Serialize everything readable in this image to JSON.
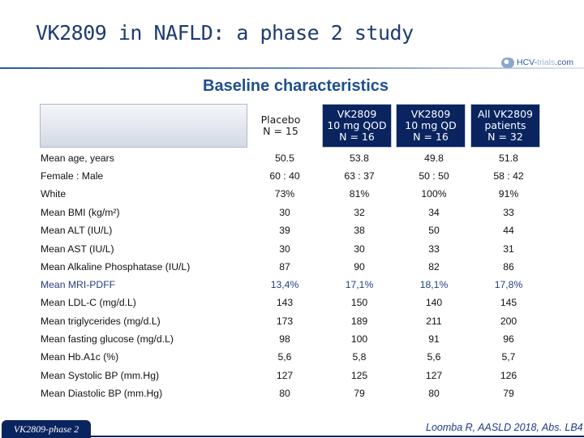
{
  "title": "VK2809 in NAFLD: a phase 2 study",
  "logo": {
    "brand": "HCV-",
    "brand_suffix": "trials",
    "domain": ".com"
  },
  "subtitle": "Baseline characteristics",
  "columns": [
    {
      "label": "Placebo\nN = 15"
    },
    {
      "label": "VK2809\n10 mg QOD\nN = 16"
    },
    {
      "label": "VK2809\n10 mg QD\nN = 16"
    },
    {
      "label": "All VK2809\npatients\nN = 32"
    }
  ],
  "rows": [
    {
      "label": "Mean age, years",
      "values": [
        "50.5",
        "53.8",
        "49.8",
        "51.8"
      ]
    },
    {
      "label": "Female : Male",
      "values": [
        "60 : 40",
        "63 : 37",
        "50 : 50",
        "58 : 42"
      ]
    },
    {
      "label": "White",
      "values": [
        "73%",
        "81%",
        "100%",
        "91%"
      ]
    },
    {
      "label": "Mean BMI (kg/m²)",
      "values": [
        "30",
        "32",
        "34",
        "33"
      ]
    },
    {
      "label": "Mean ALT (IU/L)",
      "values": [
        "39",
        "38",
        "50",
        "44"
      ]
    },
    {
      "label": "Mean AST (IU/L)",
      "values": [
        "30",
        "30",
        "33",
        "31"
      ]
    },
    {
      "label": "Mean Alkaline Phosphatase (IU/L)",
      "values": [
        "87",
        "90",
        "82",
        "86"
      ]
    },
    {
      "label": "Mean MRI-PDFF",
      "values": [
        "13,4%",
        "17,1%",
        "18,1%",
        "17,8%"
      ]
    },
    {
      "label": "Mean LDL-C (mg/d.L)",
      "values": [
        "143",
        "150",
        "140",
        "145"
      ]
    },
    {
      "label": "Mean triglycerides (mg/d.L)",
      "values": [
        "173",
        "189",
        "211",
        "200"
      ]
    },
    {
      "label": "Mean fasting glucose (mg/d.L)",
      "values": [
        "98",
        "100",
        "91",
        "96"
      ]
    },
    {
      "label": "Mean Hb.A1c (%)",
      "values": [
        "5,6",
        "5,8",
        "5,6",
        "5,7"
      ]
    },
    {
      "label": "Mean Systolic BP (mm.Hg)",
      "values": [
        "127",
        "125",
        "127",
        "126"
      ]
    },
    {
      "label": "Mean Diastolic BP (mm.Hg)",
      "values": [
        "80",
        "79",
        "80",
        "79"
      ]
    }
  ],
  "footer": {
    "tab_label": "VK2809-phase 2",
    "citation": "Loomba R, AASLD 2018, Abs. LB4"
  },
  "colors": {
    "navy": "#0a2460",
    "title_blue": "#1f3b70",
    "highlight_text": "#243e82"
  }
}
